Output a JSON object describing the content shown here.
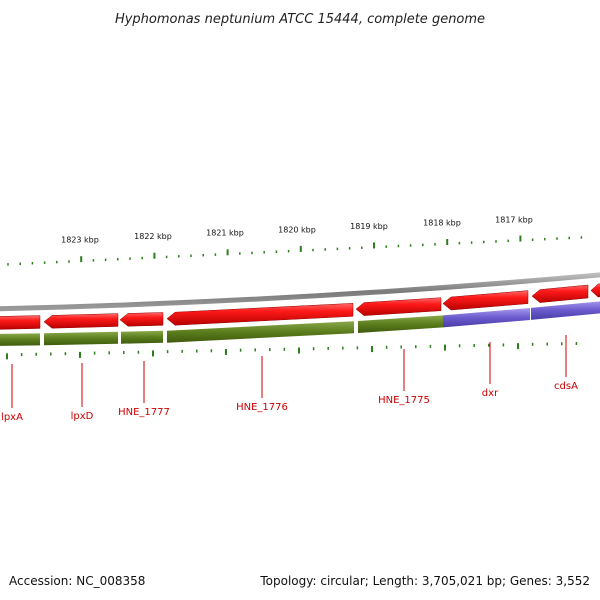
{
  "title": "Hyphomonas neptunium ATCC 15444, complete genome",
  "footer": {
    "accession": "Accession: NC_008358",
    "summary": "Topology: circular; Length: 3,705,021 bp; Genes: 3,552"
  },
  "colors": {
    "gene_strand": "#ee0000",
    "gene_label": "#cc0000",
    "backbone": "#888888",
    "cds_olive": "#5a7a1a",
    "cds_purple": "#6a5acd",
    "tick": "#2e7d1e"
  },
  "scale_labels": [
    "1823 kbp",
    "1822 kbp",
    "1821 kbp",
    "1820 kbp",
    "1819 kbp",
    "1818 kbp",
    "1817 kbp"
  ],
  "genes": [
    {
      "label": "lpxA"
    },
    {
      "label": "lpxD"
    },
    {
      "label": "HNE_1777"
    },
    {
      "label": "HNE_1776"
    },
    {
      "label": "HNE_1775"
    },
    {
      "label": "dxr"
    },
    {
      "label": "cdsA"
    }
  ]
}
